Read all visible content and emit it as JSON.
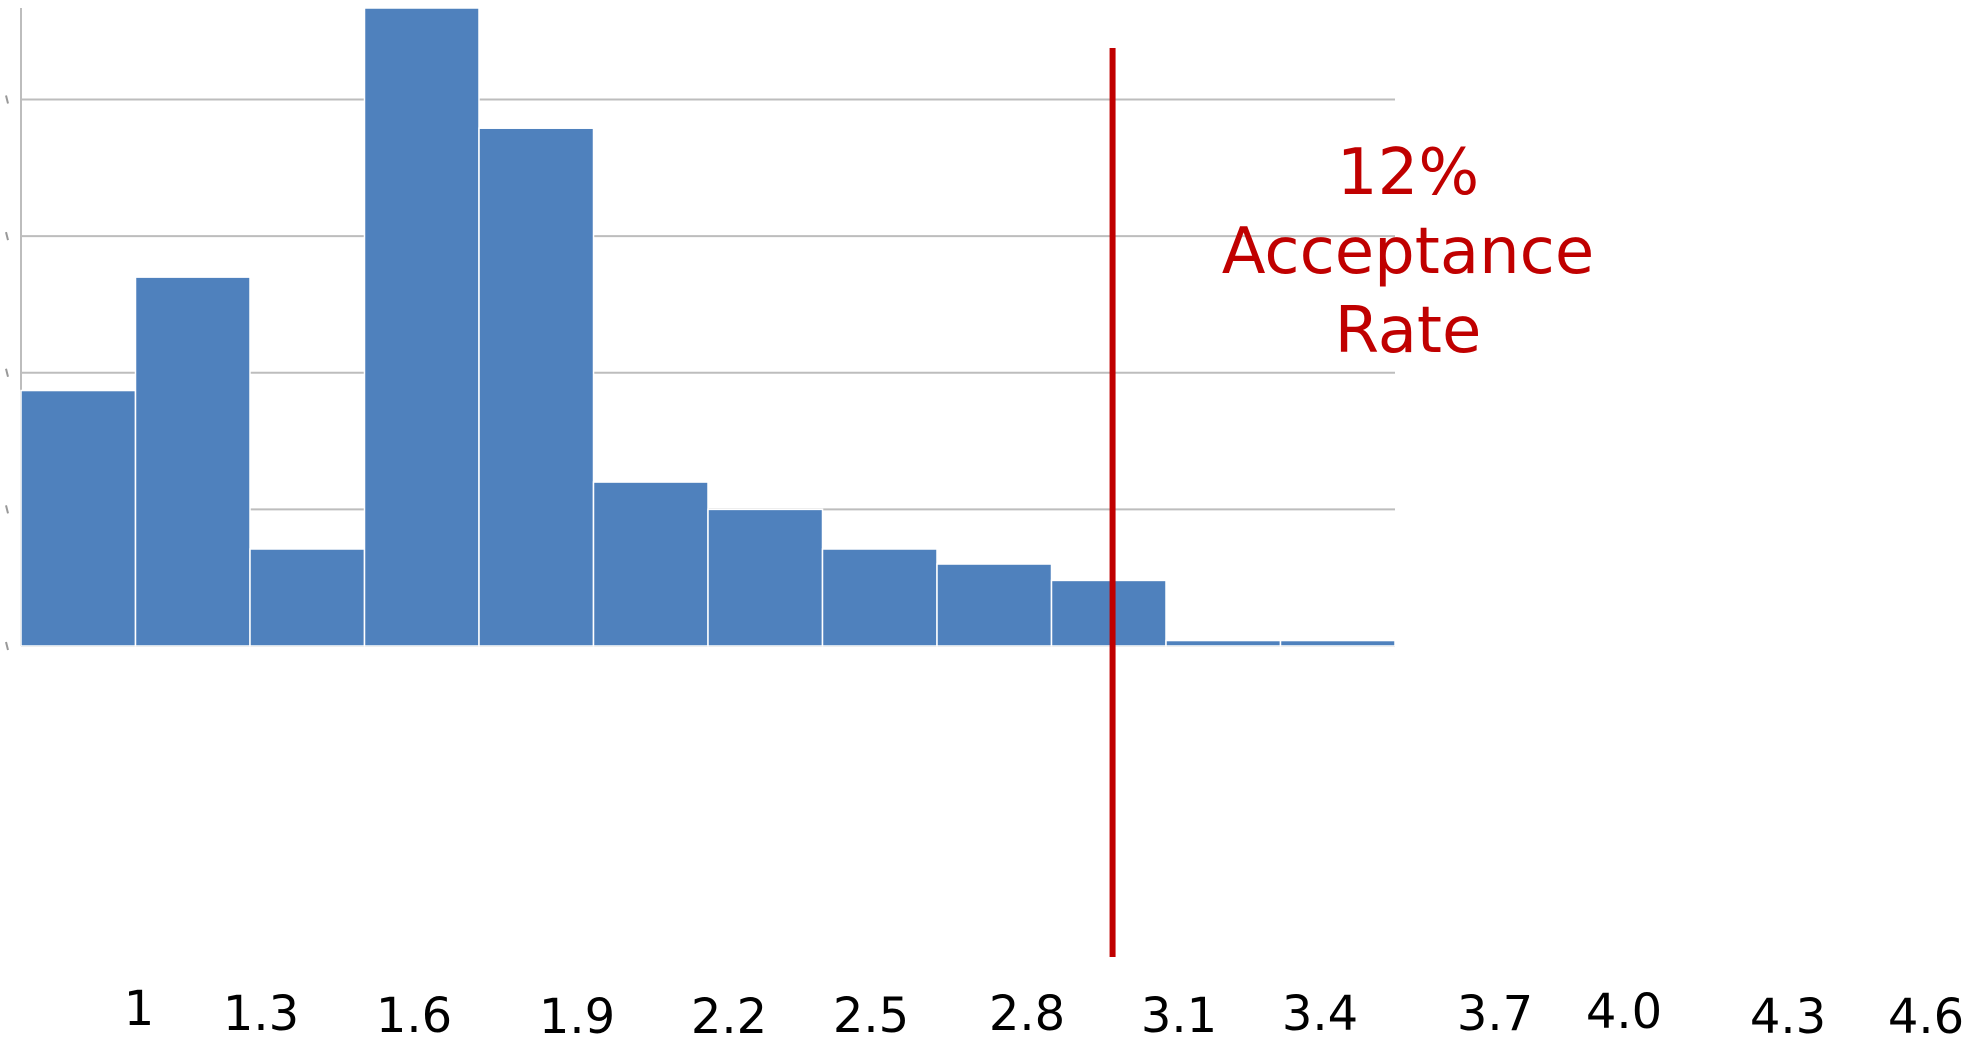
{
  "chart_data": {
    "type": "histogram",
    "bins": [
      1,
      1.3,
      1.6,
      1.9,
      2.2,
      2.5,
      2.8,
      3.1,
      3.4,
      3.7,
      {
        "value": 4,
        "label": "4.0"
      },
      4.3,
      4.6
    ],
    "values": [
      1.87,
      2.7,
      0.71,
      4.67,
      3.79,
      1.2,
      1.0,
      0.71,
      0.6,
      0.48,
      0.04,
      0.04
    ],
    "color": "#4f81bd",
    "ylim": [
      0,
      4.67
    ],
    "yticks": [
      0,
      1,
      2,
      3,
      4
    ],
    "grid": true,
    "threshold": 3.86,
    "threshold_color": "#c00000",
    "annotation": "12% Acceptance Rate"
  }
}
